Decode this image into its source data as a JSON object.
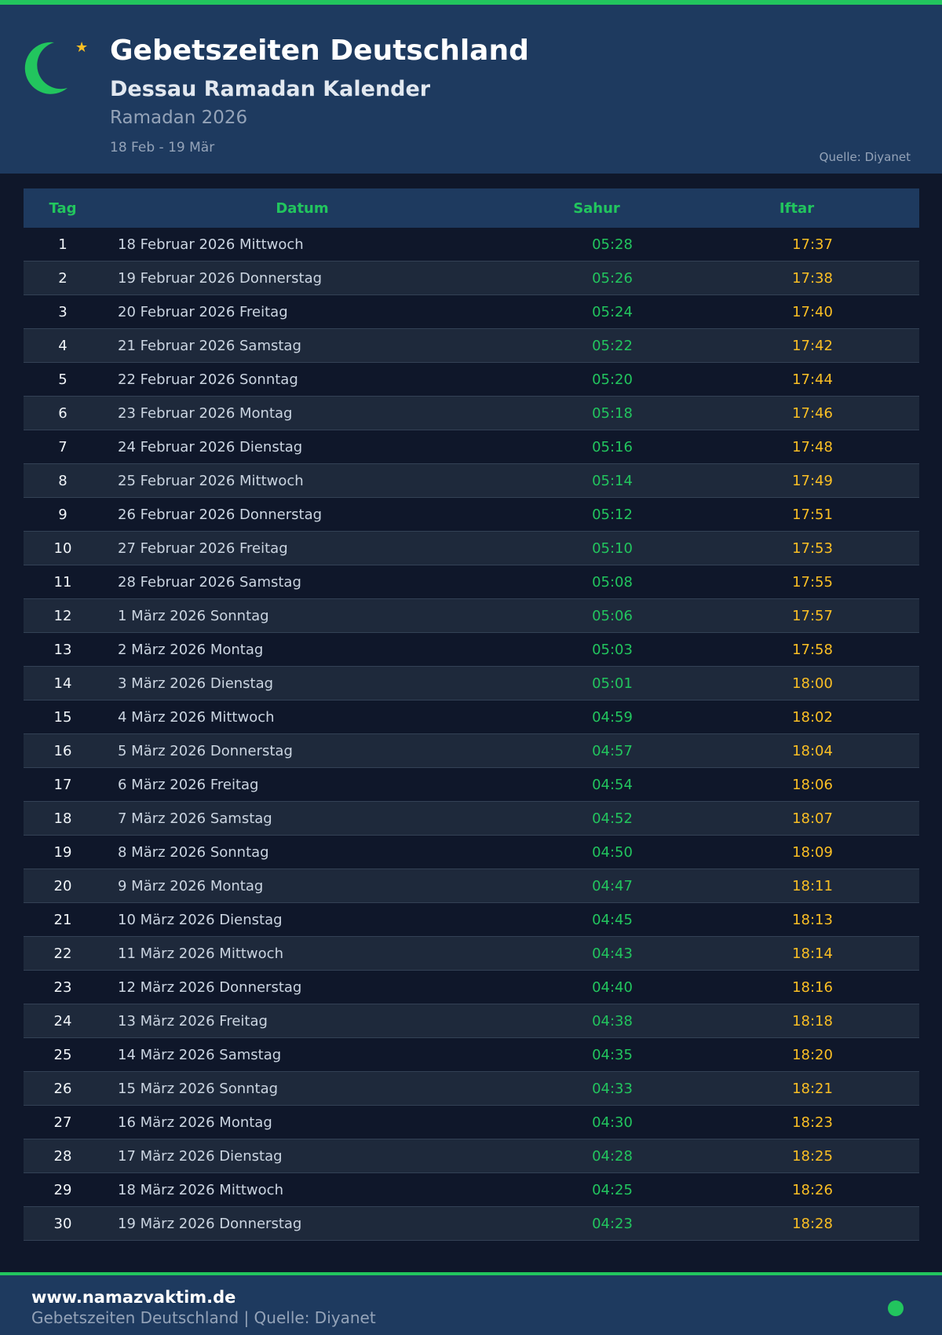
{
  "colors": {
    "accent": "#22c55e",
    "iftar": "#fbbf24",
    "header_bg": "#1e3a5f",
    "page_bg": "#0f172a"
  },
  "header": {
    "logo_icon": "crescent-star-icon",
    "title": "Gebetszeiten Deutschland",
    "subtitle": "Dessau Ramadan Kalender",
    "season": "Ramadan 2026",
    "range": "18 Feb - 19 Mär",
    "source": "Quelle: Diyanet"
  },
  "table": {
    "columns": [
      "Tag",
      "Datum",
      "Sahur",
      "Iftar"
    ],
    "rows": [
      [
        "1",
        "18 Februar 2026 Mittwoch",
        "05:28",
        "17:37"
      ],
      [
        "2",
        "19 Februar 2026 Donnerstag",
        "05:26",
        "17:38"
      ],
      [
        "3",
        "20 Februar 2026 Freitag",
        "05:24",
        "17:40"
      ],
      [
        "4",
        "21 Februar 2026 Samstag",
        "05:22",
        "17:42"
      ],
      [
        "5",
        "22 Februar 2026 Sonntag",
        "05:20",
        "17:44"
      ],
      [
        "6",
        "23 Februar 2026 Montag",
        "05:18",
        "17:46"
      ],
      [
        "7",
        "24 Februar 2026 Dienstag",
        "05:16",
        "17:48"
      ],
      [
        "8",
        "25 Februar 2026 Mittwoch",
        "05:14",
        "17:49"
      ],
      [
        "9",
        "26 Februar 2026 Donnerstag",
        "05:12",
        "17:51"
      ],
      [
        "10",
        "27 Februar 2026 Freitag",
        "05:10",
        "17:53"
      ],
      [
        "11",
        "28 Februar 2026 Samstag",
        "05:08",
        "17:55"
      ],
      [
        "12",
        "1 März 2026 Sonntag",
        "05:06",
        "17:57"
      ],
      [
        "13",
        "2 März 2026 Montag",
        "05:03",
        "17:58"
      ],
      [
        "14",
        "3 März 2026 Dienstag",
        "05:01",
        "18:00"
      ],
      [
        "15",
        "4 März 2026 Mittwoch",
        "04:59",
        "18:02"
      ],
      [
        "16",
        "5 März 2026 Donnerstag",
        "04:57",
        "18:04"
      ],
      [
        "17",
        "6 März 2026 Freitag",
        "04:54",
        "18:06"
      ],
      [
        "18",
        "7 März 2026 Samstag",
        "04:52",
        "18:07"
      ],
      [
        "19",
        "8 März 2026 Sonntag",
        "04:50",
        "18:09"
      ],
      [
        "20",
        "9 März 2026 Montag",
        "04:47",
        "18:11"
      ],
      [
        "21",
        "10 März 2026 Dienstag",
        "04:45",
        "18:13"
      ],
      [
        "22",
        "11 März 2026 Mittwoch",
        "04:43",
        "18:14"
      ],
      [
        "23",
        "12 März 2026 Donnerstag",
        "04:40",
        "18:16"
      ],
      [
        "24",
        "13 März 2026 Freitag",
        "04:38",
        "18:18"
      ],
      [
        "25",
        "14 März 2026 Samstag",
        "04:35",
        "18:20"
      ],
      [
        "26",
        "15 März 2026 Sonntag",
        "04:33",
        "18:21"
      ],
      [
        "27",
        "16 März 2026 Montag",
        "04:30",
        "18:23"
      ],
      [
        "28",
        "17 März 2026 Dienstag",
        "04:28",
        "18:25"
      ],
      [
        "29",
        "18 März 2026 Mittwoch",
        "04:25",
        "18:26"
      ],
      [
        "30",
        "19 März 2026 Donnerstag",
        "04:23",
        "18:28"
      ]
    ]
  },
  "footer": {
    "site": "www.namazvaktim.de",
    "tagline": "Gebetszeiten Deutschland | Quelle: Diyanet",
    "status_icon": "status-dot-icon"
  }
}
